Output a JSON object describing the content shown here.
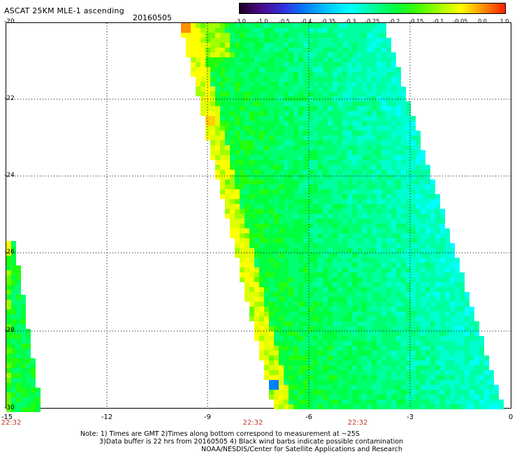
{
  "header": {
    "title": "ASCAT 25KM MLE-1 ascending",
    "date": "20160505"
  },
  "colorbar": {
    "labels": [
      "-3.0",
      "-1.0",
      "-0.5",
      "-0.4",
      "-0.35",
      "-0.3",
      "-0.25",
      "-0.2",
      "-0.15",
      "-0.1",
      "-0.05",
      "0.0",
      "1.0"
    ],
    "colors": [
      "#1a0020",
      "#4b0a8c",
      "#3030e0",
      "#0080ff",
      "#00c8ff",
      "#00ffff",
      "#00ffa0",
      "#00ff40",
      "#40ff00",
      "#a0ff00",
      "#ffff00",
      "#ff9000",
      "#ff2000"
    ]
  },
  "map": {
    "lat_labels": [
      "-20",
      "-22",
      "-24",
      "-26",
      "-28",
      "-30"
    ],
    "lon_labels": [
      "-15",
      "-12",
      "-9",
      "-6",
      "-3",
      "0"
    ],
    "time_labels": [
      "22:32",
      "22:32",
      "22:32"
    ],
    "lat_range": [
      -30,
      -20
    ],
    "lon_range": [
      -15,
      0
    ]
  },
  "notes": {
    "line1": "Note: 1) Times are GMT 2)Times along bottom correspond to measurement at ~25S",
    "line2": "3)Data buffer is 22 hrs from 20160505 4) Black wind barbs indicate possible contamination",
    "line3": "NOAA/NESDIS/Center for Satellite Applications and Research"
  }
}
